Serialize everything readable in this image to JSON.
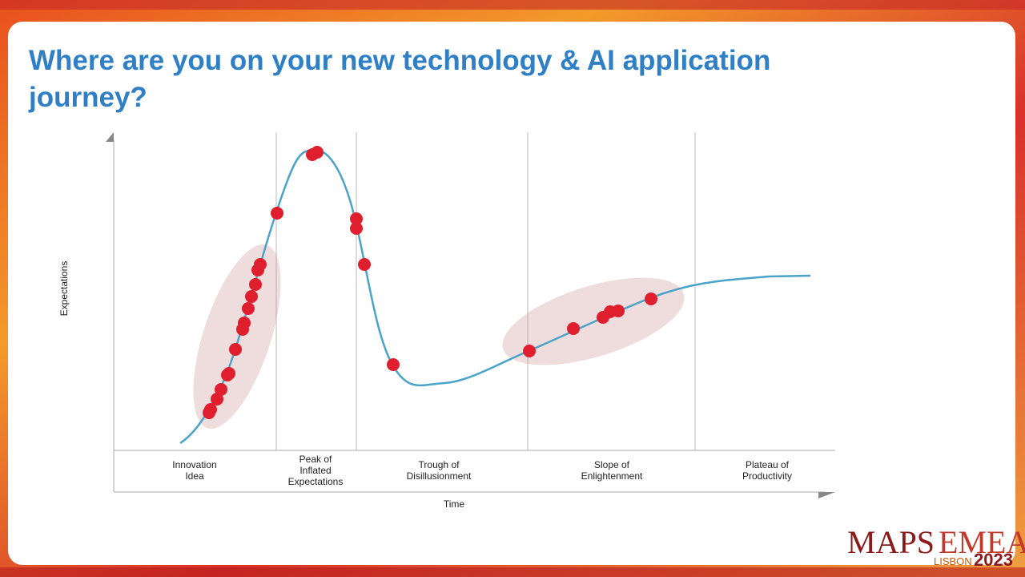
{
  "header": {
    "title": "Where are you on your new technology & AI application journey?"
  },
  "diagram": {
    "y_axis_label": "Expectations",
    "x_axis_label": "Time",
    "phases": [
      {
        "lines": [
          "Innovation",
          "Idea"
        ]
      },
      {
        "lines": [
          "Peak of",
          "Inflated",
          "Expectations"
        ]
      },
      {
        "lines": [
          "Trough of",
          "Disillusionment"
        ]
      },
      {
        "lines": [
          "Slope of",
          "Enlightenment"
        ]
      },
      {
        "lines": [
          "Plateau of",
          "Productivity"
        ]
      }
    ]
  },
  "logo": {
    "brand": "MAPS",
    "region": "EMEA",
    "city": "LISBON",
    "year": "2023"
  }
}
